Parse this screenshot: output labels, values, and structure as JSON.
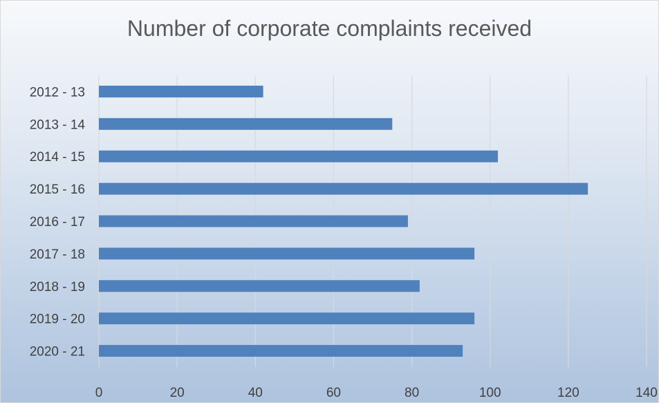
{
  "chart_data": {
    "type": "bar",
    "orientation": "horizontal",
    "title": "Number of corporate complaints received",
    "categories": [
      "2012 - 13",
      "2013 - 14",
      "2014 - 15",
      "2015 - 16",
      "2016 - 17",
      "2017 - 18",
      "2018 - 19",
      "2019 - 20",
      "2020 - 21"
    ],
    "values": [
      42,
      75,
      102,
      125,
      79,
      96,
      82,
      96,
      93
    ],
    "xlim": [
      0,
      140
    ],
    "xticks": [
      0,
      20,
      40,
      60,
      80,
      100,
      120,
      140
    ],
    "grid": "vertical",
    "legend": "none",
    "colors": {
      "bar": "#4f81bd",
      "grid": "#d9d9d9",
      "text": "#404040",
      "title": "#595959"
    }
  }
}
